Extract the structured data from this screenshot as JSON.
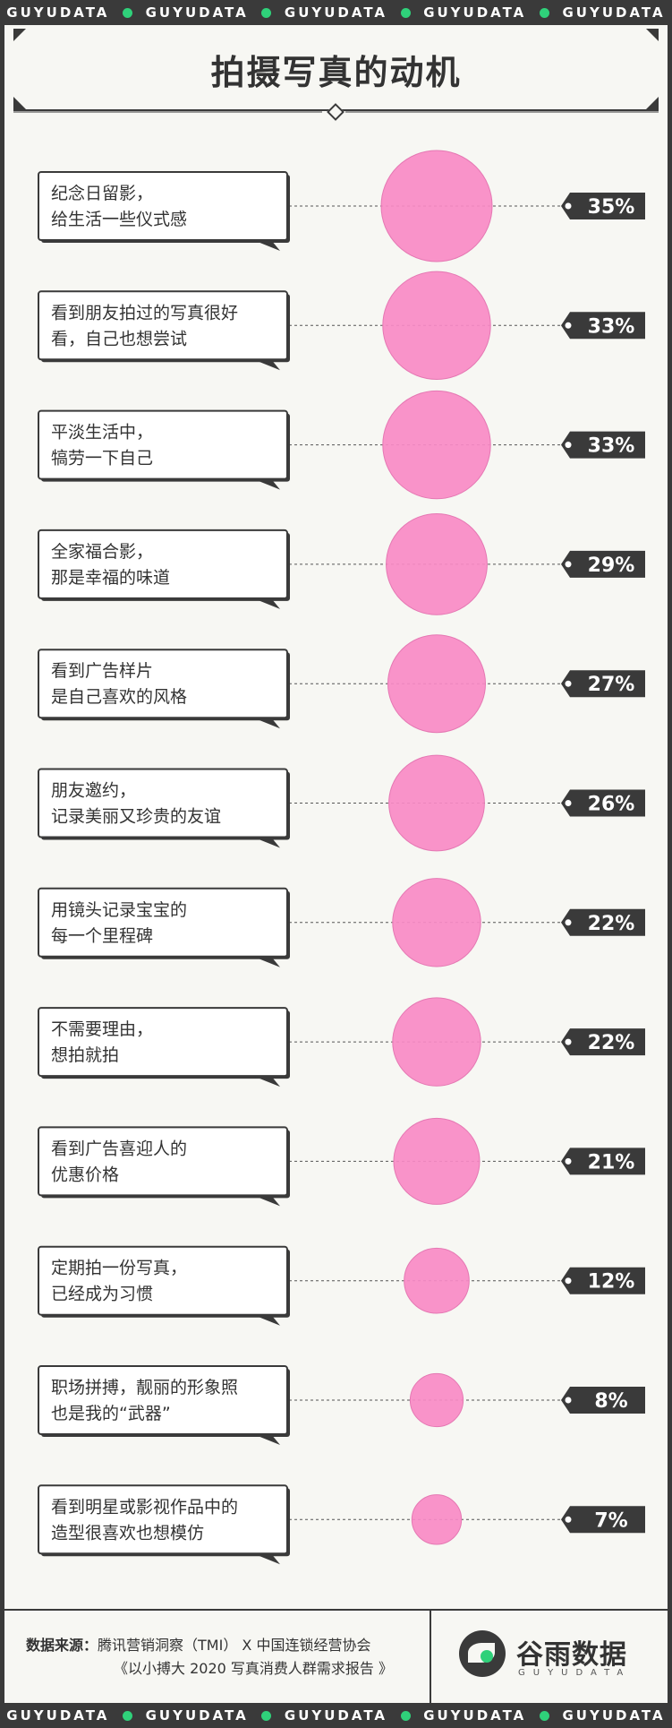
{
  "strip": {
    "top": [
      "GUYUDATA",
      "GUYUDATA",
      "GUYUDATA",
      "GUYUDATA",
      "GUYUDATA"
    ],
    "bottom": [
      "GUYUDATA",
      "GUYUDATA",
      "GUYUDATA",
      "GUYUDATA",
      "GUYUDATA"
    ]
  },
  "colors": {
    "bubble": "#f88ac6",
    "dark": "#3a3a3a",
    "accent": "#2fd17a",
    "background": "#f7f7f3"
  },
  "chart_data": {
    "type": "bubble",
    "title": "拍摄写真的动机",
    "categories": [
      "纪念日留影，\n给生活一些仪式感",
      "看到朋友拍过的写真很好\n看，自己也想尝试",
      "平淡生活中，\n犒劳一下自己",
      "全家福合影，\n那是幸福的味道",
      "看到广告样片\n是自己喜欢的风格",
      "朋友邀约，\n记录美丽又珍贵的友谊",
      "用镜头记录宝宝的\n每一个里程碑",
      "不需要理由，\n想拍就拍",
      "看到广告喜迎人的\n优惠价格",
      "定期拍一份写真，\n已经成为习惯",
      "职场拼搏，靓丽的形象照\n也是我的“武器”",
      "看到明星或影视作品中的\n造型很喜欢也想模仿"
    ],
    "values": [
      35,
      33,
      33,
      29,
      27,
      26,
      22,
      22,
      21,
      12,
      8,
      7
    ],
    "value_labels": [
      "35%",
      "33%",
      "33%",
      "29%",
      "27%",
      "26%",
      "22%",
      "22%",
      "21%",
      "12%",
      "8%",
      "7%"
    ]
  },
  "footer": {
    "source_label": "数据来源：",
    "source_line1": "腾讯营销洞察（TMI） X 中国连锁经营协会",
    "source_line2": "《以小搏大 2020 写真消费人群需求报告 》",
    "logo_cn": "谷雨数据",
    "logo_en": "GUYUDATA",
    "logo_icon": "guyu-bird-logo-icon"
  }
}
